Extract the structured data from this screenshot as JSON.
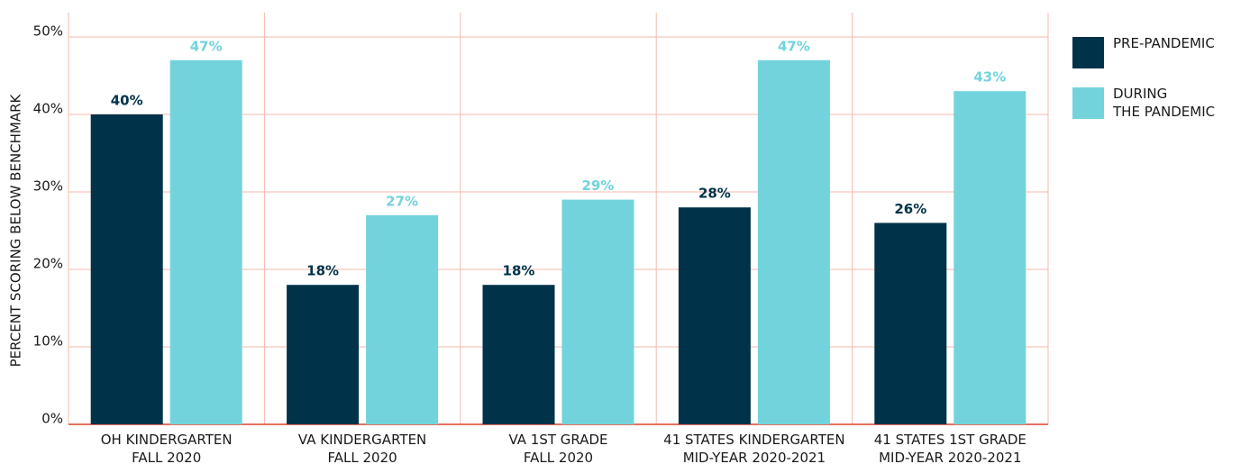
{
  "chart_data": {
    "type": "bar",
    "y_label": "PERCENT SCORING BELOW BENCHMARK",
    "categories": [
      "OH KINDERGARTEN\nFALL 2020",
      "VA KINDERGARTEN\nFALL 2020",
      "VA 1ST GRADE\nFALL 2020",
      "41 STATES KINDERGARTEN\nMID-YEAR 2020-2021",
      "41 STATES 1ST GRADE\nMID-YEAR 2020-2021"
    ],
    "series": [
      {
        "name": "PRE-PANDEMIC",
        "color": "#003349",
        "values": [
          40,
          18,
          18,
          28,
          26
        ],
        "value_labels": [
          "40%",
          "18%",
          "18%",
          "28%",
          "26%"
        ]
      },
      {
        "name": "DURING\nTHE PANDEMIC",
        "color": "#72d3dc",
        "values": [
          47,
          27,
          29,
          47,
          43
        ],
        "value_labels": [
          "47%",
          "27%",
          "29%",
          "47%",
          "43%"
        ]
      }
    ],
    "ylim": [
      0,
      50
    ],
    "yticks": [
      {
        "value": 0,
        "label": "0%"
      },
      {
        "value": 10,
        "label": "10%"
      },
      {
        "value": 20,
        "label": "20%"
      },
      {
        "value": 30,
        "label": "30%"
      },
      {
        "value": 40,
        "label": "40%"
      },
      {
        "value": 50,
        "label": "50%"
      }
    ],
    "grid": true,
    "legend": "right"
  }
}
